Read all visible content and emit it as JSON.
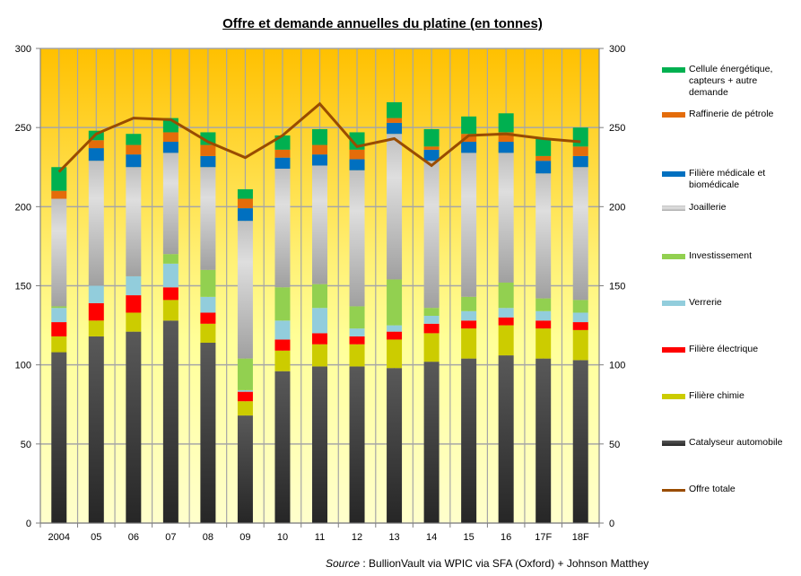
{
  "chart_data": {
    "type": "bar",
    "stacked": true,
    "title": "Offre et demande annuelles du platine (en tonnes)",
    "xlabel": "",
    "ylabel": "",
    "ylim": [
      0,
      300
    ],
    "y_ticks": [
      0,
      50,
      100,
      150,
      200,
      250,
      300
    ],
    "secondary_ylim": [
      0,
      300
    ],
    "grid": true,
    "legend_position": "right",
    "categories": [
      "2004",
      "05",
      "06",
      "07",
      "08",
      "09",
      "10",
      "11",
      "12",
      "13",
      "14",
      "15",
      "16",
      "17F",
      "18F"
    ],
    "series": [
      {
        "name": "Catalyseur automobile",
        "type": "bar",
        "color": "#404040",
        "values": [
          108,
          118,
          121,
          128,
          114,
          68,
          96,
          99,
          99,
          98,
          102,
          104,
          106,
          104,
          103
        ]
      },
      {
        "name": "Filière chimie",
        "type": "bar",
        "color": "#cccc00",
        "values": [
          10,
          10,
          12,
          13,
          12,
          9,
          13,
          14,
          14,
          18,
          18,
          19,
          19,
          19,
          19
        ]
      },
      {
        "name": "Filière électrique",
        "type": "bar",
        "color": "#ff0000",
        "values": [
          9,
          11,
          11,
          8,
          7,
          6,
          7,
          7,
          5,
          5,
          6,
          5,
          5,
          5,
          5
        ]
      },
      {
        "name": "Verrerie",
        "type": "bar",
        "color": "#92cddc",
        "values": [
          9,
          11,
          12,
          15,
          10,
          1,
          12,
          16,
          5,
          4,
          5,
          6,
          6,
          6,
          6
        ]
      },
      {
        "name": "Investissement",
        "type": "bar",
        "color": "#92d050",
        "values": [
          1,
          0,
          0,
          6,
          17,
          20,
          21,
          15,
          14,
          29,
          5,
          9,
          16,
          8,
          8
        ]
      },
      {
        "name": "Joaillerie",
        "type": "bar",
        "color": "#bfbfbf",
        "values": [
          68,
          79,
          69,
          64,
          65,
          87,
          75,
          75,
          86,
          92,
          93,
          91,
          82,
          79,
          84
        ]
      },
      {
        "name": "Filière médicale et biomédicale",
        "type": "bar",
        "color": "#0070c0",
        "values": [
          0,
          8,
          8,
          7,
          7,
          8,
          7,
          7,
          7,
          7,
          7,
          7,
          7,
          8,
          7
        ]
      },
      {
        "name": "Raffinerie de pétrole",
        "type": "bar",
        "color": "#e46c0a",
        "values": [
          5,
          5,
          6,
          6,
          7,
          6,
          5,
          6,
          6,
          3,
          2,
          5,
          6,
          3,
          6
        ]
      },
      {
        "name": "Cellule énergétique, capteurs + autre demande",
        "type": "bar",
        "color": "#00b050",
        "values": [
          15,
          6,
          7,
          9,
          8,
          6,
          9,
          10,
          11,
          10,
          11,
          11,
          12,
          11,
          12
        ]
      },
      {
        "name": "Offre totale",
        "type": "line",
        "color": "#994c00",
        "values": [
          222,
          246,
          256,
          255,
          241,
          231,
          245,
          265,
          238,
          243,
          226,
          245,
          246,
          243,
          241
        ]
      }
    ],
    "legend": [
      "Cellule énergétique, capteurs + autre demande",
      "Raffinerie de pétrole",
      "Filière médicale et biomédicale",
      "Joaillerie",
      "Investissement",
      "Verrerie",
      "Filière électrique",
      "Filière chimie",
      "Catalyseur automobile",
      "Offre totale"
    ]
  },
  "source": {
    "prefix": "Source",
    "text": " : BullionVault via  WPIC via SFA (Oxford)  + Johnson Matthey"
  }
}
